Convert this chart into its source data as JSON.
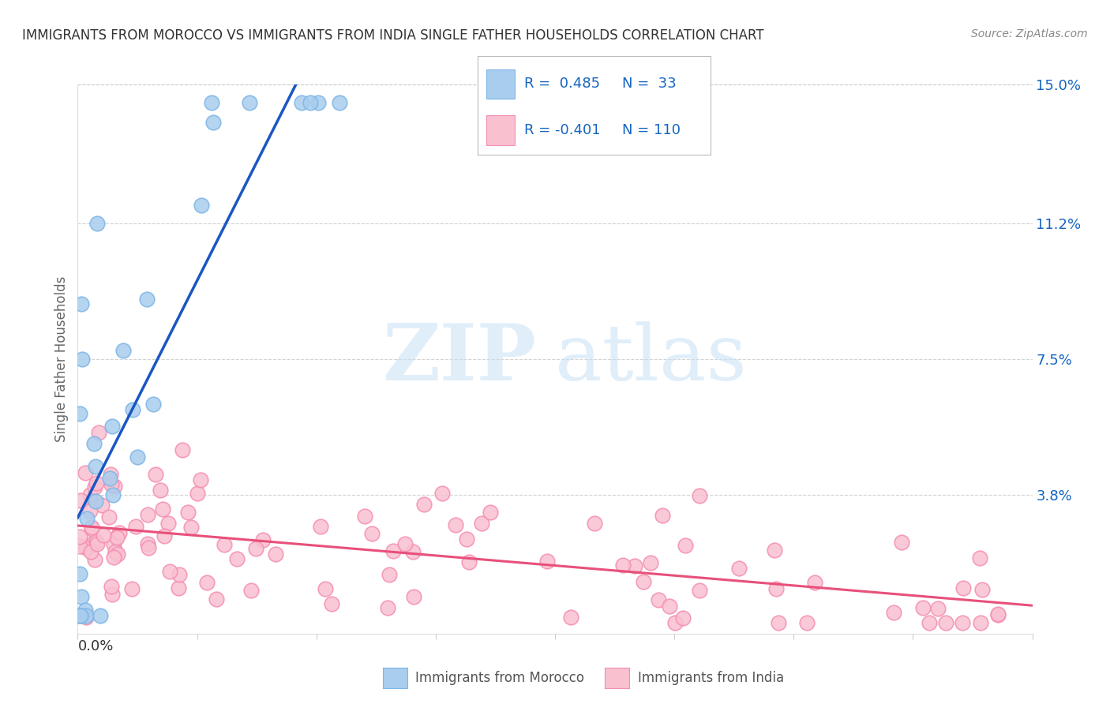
{
  "title": "IMMIGRANTS FROM MOROCCO VS IMMIGRANTS FROM INDIA SINGLE FATHER HOUSEHOLDS CORRELATION CHART",
  "source": "Source: ZipAtlas.com",
  "ylabel": "Single Father Households",
  "right_yticks": [
    0.0,
    0.038,
    0.075,
    0.112,
    0.15
  ],
  "right_ytick_labels": [
    "",
    "3.8%",
    "7.5%",
    "11.2%",
    "15.0%"
  ],
  "watermark_zip": "ZIP",
  "watermark_atlas": "atlas",
  "legend_line1": "R =  0.485   N =  33",
  "legend_line2": "R = -0.401   N = 110",
  "morocco_face_color": "#A8CDED",
  "morocco_edge_color": "#7EB6E8",
  "india_face_color": "#F9C0D0",
  "india_edge_color": "#F48FB1",
  "morocco_line_color": "#1A56C4",
  "morocco_dash_color": "#90CAF9",
  "india_line_color": "#E8507A",
  "xlim": [
    0.0,
    0.4
  ],
  "ylim": [
    0.0,
    0.15
  ],
  "background_color": "#ffffff",
  "grid_color": "#c8c8c8",
  "title_color": "#333333",
  "source_color": "#888888",
  "ytick_color": "#1565C0",
  "ylabel_color": "#666666",
  "xtick_label_color": "#333333",
  "legend_text_color": "#1565C0",
  "bottom_legend_color": "#555555"
}
